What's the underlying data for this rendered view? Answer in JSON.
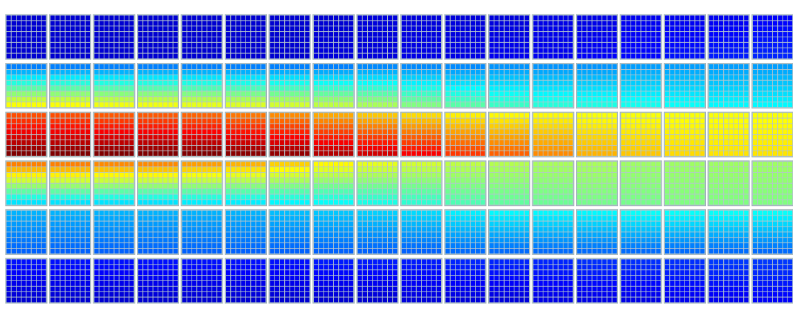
{
  "chart_data": {
    "type": "heatmap",
    "title": "",
    "xlabel": "",
    "ylabel": "",
    "grid": true,
    "legend": "none",
    "colormap": "jet",
    "block_rows": 6,
    "block_cols": 18,
    "cells_per_block": [
      8,
      8
    ],
    "value_range": [
      0,
      1
    ],
    "row_values": [
      {
        "top": [
          0.08,
          0.08,
          0.08,
          0.08,
          0.08,
          0.08,
          0.08,
          0.08,
          0.09,
          0.09,
          0.09,
          0.09,
          0.1,
          0.1,
          0.11,
          0.11,
          0.11,
          0.12
        ],
        "bottom": [
          0.08,
          0.08,
          0.08,
          0.08,
          0.08,
          0.08,
          0.08,
          0.09,
          0.09,
          0.1,
          0.1,
          0.11,
          0.11,
          0.12,
          0.13,
          0.14,
          0.15,
          0.16
        ]
      },
      {
        "top": [
          0.25,
          0.25,
          0.25,
          0.25,
          0.25,
          0.25,
          0.25,
          0.25,
          0.26,
          0.26,
          0.26,
          0.27,
          0.27,
          0.27,
          0.28,
          0.28,
          0.28,
          0.28
        ],
        "bottom": [
          0.62,
          0.62,
          0.61,
          0.61,
          0.6,
          0.59,
          0.58,
          0.56,
          0.54,
          0.5,
          0.46,
          0.43,
          0.41,
          0.4,
          0.39,
          0.38,
          0.37,
          0.37
        ]
      },
      {
        "top": [
          0.8,
          0.8,
          0.79,
          0.79,
          0.78,
          0.76,
          0.74,
          0.71,
          0.68,
          0.66,
          0.64,
          0.63,
          0.63,
          0.62,
          0.62,
          0.62,
          0.62,
          0.62
        ],
        "bottom": [
          1.0,
          1.0,
          1.0,
          1.0,
          1.0,
          0.99,
          0.98,
          0.95,
          0.92,
          0.88,
          0.82,
          0.78,
          0.74,
          0.7,
          0.68,
          0.66,
          0.65,
          0.65
        ]
      },
      {
        "top": [
          0.75,
          0.75,
          0.74,
          0.74,
          0.72,
          0.7,
          0.67,
          0.63,
          0.6,
          0.58,
          0.56,
          0.55,
          0.54,
          0.54,
          0.53,
          0.53,
          0.53,
          0.53
        ],
        "bottom": [
          0.35,
          0.35,
          0.35,
          0.35,
          0.36,
          0.36,
          0.37,
          0.38,
          0.4,
          0.42,
          0.45,
          0.47,
          0.48,
          0.49,
          0.49,
          0.5,
          0.5,
          0.5
        ]
      },
      {
        "top": [
          0.3,
          0.3,
          0.3,
          0.3,
          0.3,
          0.3,
          0.31,
          0.32,
          0.33,
          0.34,
          0.36,
          0.37,
          0.37,
          0.37,
          0.38,
          0.38,
          0.38,
          0.38
        ],
        "bottom": [
          0.22,
          0.22,
          0.22,
          0.22,
          0.22,
          0.22,
          0.22,
          0.22,
          0.22,
          0.22,
          0.23,
          0.23,
          0.23,
          0.23,
          0.23,
          0.23,
          0.23,
          0.23
        ]
      },
      {
        "top": [
          0.14,
          0.14,
          0.14,
          0.14,
          0.14,
          0.14,
          0.14,
          0.15,
          0.15,
          0.15,
          0.16,
          0.16,
          0.16,
          0.17,
          0.17,
          0.17,
          0.18,
          0.18
        ],
        "bottom": [
          0.08,
          0.08,
          0.08,
          0.08,
          0.08,
          0.08,
          0.08,
          0.08,
          0.08,
          0.09,
          0.09,
          0.09,
          0.1,
          0.1,
          0.1,
          0.11,
          0.11,
          0.12
        ]
      }
    ],
    "colors": {
      "block_border": "#9fb3b8",
      "cell_grid": "#b4c6cc",
      "background": "#ffffff"
    }
  }
}
